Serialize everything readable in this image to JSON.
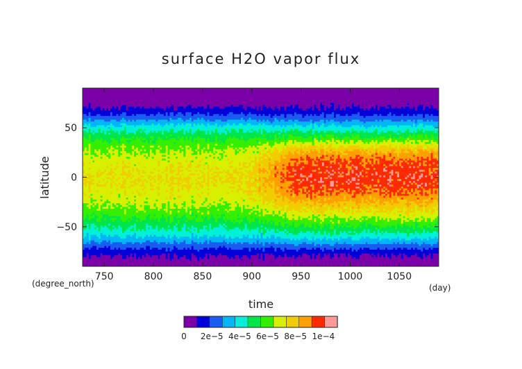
{
  "chart_data": {
    "type": "heatmap",
    "title": "surface H2O vapor flux",
    "xlabel": "time",
    "ylabel": "latitude",
    "x_units": "(day)",
    "y_units": "(degree_north)",
    "xlim": [
      728,
      1090
    ],
    "ylim": [
      -90,
      90
    ],
    "x_ticks": [
      750,
      800,
      850,
      900,
      950,
      1000,
      1050
    ],
    "x_tick_labels": [
      "750",
      "800",
      "850",
      "900",
      "950",
      "1000",
      "1050"
    ],
    "y_ticks": [
      50,
      0,
      -50
    ],
    "y_tick_labels": [
      "50",
      "0",
      "−50"
    ],
    "colorbar": {
      "levels": [
        0,
        1e-05,
        2e-05,
        3e-05,
        4e-05,
        5e-05,
        6e-05,
        7e-05,
        8e-05,
        9e-05,
        0.0001,
        0.00011
      ],
      "colors": [
        "#7b00a8",
        "#0000d8",
        "#1a5cf0",
        "#00b6f6",
        "#00f0d8",
        "#00e64a",
        "#34f000",
        "#d8f000",
        "#f0cc00",
        "#ff9f00",
        "#ff2a00",
        "#ff9999"
      ],
      "tick_labels": [
        "0",
        "2e−5",
        "4e−5",
        "6e−5",
        "8e−5",
        "1e−4"
      ]
    },
    "latitude_profile": {
      "latitudes": [
        -90,
        -84,
        -78,
        -72,
        -66,
        -60,
        -54,
        -48,
        -42,
        -36,
        -30,
        -24,
        -18,
        -12,
        -6,
        0,
        6,
        12,
        18,
        24,
        30,
        36,
        42,
        48,
        54,
        60,
        66,
        72,
        78,
        84,
        90
      ],
      "early_period_values": [
        2e-06,
        6e-06,
        1.2e-05,
        2e-05,
        3e-05,
        4e-05,
        4.8e-05,
        5.4e-05,
        6e-05,
        6.6e-05,
        7e-05,
        7.4e-05,
        7.6e-05,
        7.8e-05,
        8e-05,
        8e-05,
        7.9e-05,
        7.7e-05,
        7.5e-05,
        7.2e-05,
        6.8e-05,
        6.3e-05,
        5.6e-05,
        4.8e-05,
        3.8e-05,
        2.6e-05,
        1.6e-05,
        8e-06,
        4e-06,
        2e-06,
        1e-06
      ],
      "late_period_values": [
        2e-06,
        5e-06,
        1.1e-05,
        2.1e-05,
        3.3e-05,
        4.4e-05,
        5.4e-05,
        6.2e-05,
        7e-05,
        7.8e-05,
        8.5e-05,
        9.2e-05,
        9.8e-05,
        0.000103,
        0.000106,
        0.000107,
        0.000106,
        0.000104,
        0.0001,
        9.3e-05,
        8.2e-05,
        7e-05,
        5.8e-05,
        4.7e-05,
        3.6e-05,
        2.4e-05,
        1.5e-05,
        8e-06,
        4e-06,
        2e-06,
        1e-06
      ],
      "transition_day": 920
    }
  }
}
